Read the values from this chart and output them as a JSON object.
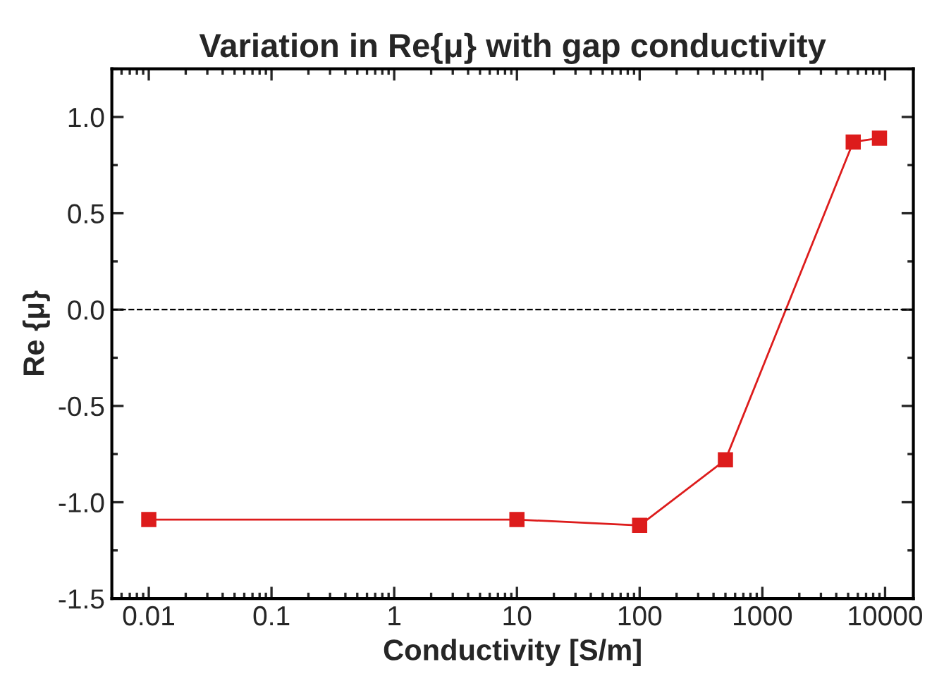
{
  "chart_data": {
    "type": "line",
    "title": "Variation in Re{μ} with gap conductivity",
    "xlabel": "Conductivity [S/m]",
    "ylabel": "Re {μ}",
    "x": [
      0.01,
      10,
      100,
      500,
      5500,
      9000
    ],
    "series": [
      {
        "color": "#dd1c1c",
        "values": [
          -1.09,
          -1.09,
          -1.12,
          -0.78,
          0.87,
          0.89
        ]
      }
    ],
    "marker": "square",
    "line_style": "solid",
    "log": "x",
    "grid": false,
    "legend": false,
    "xlim": [
      0.005,
      17000
    ],
    "xticks": [
      {
        "value": 0.01,
        "label": "0.01"
      },
      {
        "value": 0.1,
        "label": "0.1"
      },
      {
        "value": 1,
        "label": "1"
      },
      {
        "value": 10,
        "label": "10"
      },
      {
        "value": 100,
        "label": "100"
      },
      {
        "value": 1000,
        "label": "1000"
      },
      {
        "value": 10000,
        "label": "10000"
      }
    ],
    "ylim": [
      -1.5,
      1.25
    ],
    "yticks": [
      {
        "value": -1.5,
        "label": "-1.5"
      },
      {
        "value": -1.0,
        "label": "-1.0"
      },
      {
        "value": -0.5,
        "label": "-0.5"
      },
      {
        "value": 0.0,
        "label": "0.0"
      },
      {
        "value": 0.5,
        "label": "0.5"
      },
      {
        "value": 1.0,
        "label": "1.0"
      }
    ],
    "ref_lines": [
      {
        "axis": "y",
        "value": 0,
        "color": "#000000",
        "line_style": "dashed"
      }
    ]
  }
}
